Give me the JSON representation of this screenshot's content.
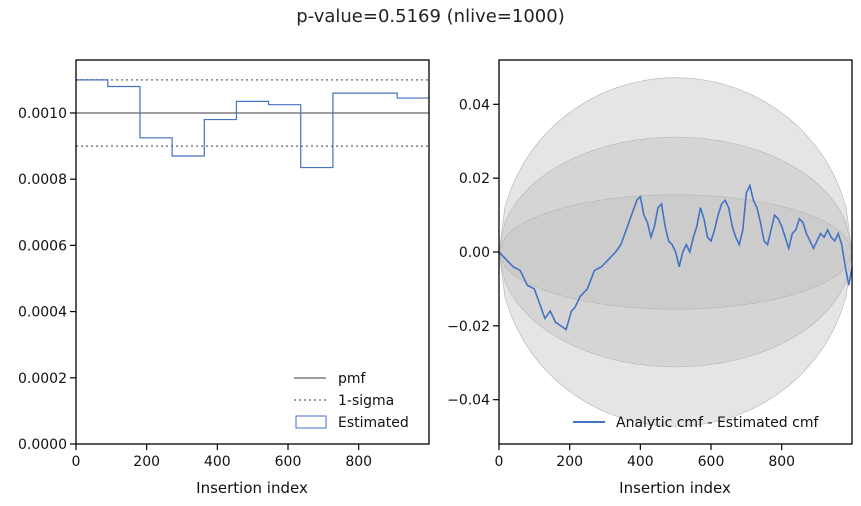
{
  "figure": {
    "title": "p-value=0.5169 (nlive=1000)"
  },
  "chart_data": [
    {
      "type": "line",
      "xlabel": "Insertion index",
      "ylabel": "",
      "xlim": [
        0,
        999
      ],
      "ylim": [
        0,
        0.00116
      ],
      "x_ticks": [
        0,
        200,
        400,
        600,
        800
      ],
      "x_tick_labels": [
        "0",
        "200",
        "400",
        "600",
        "800"
      ],
      "y_ticks": [
        0,
        0.0002,
        0.0004,
        0.0006,
        0.0008,
        0.001
      ],
      "y_tick_labels": [
        "0.0000",
        "0.0002",
        "0.0004",
        "0.0006",
        "0.0008",
        "0.0010"
      ],
      "grid": false,
      "legend_position": "lower-right",
      "colors": {
        "pmf": "#7f7f7f",
        "sigma": "#7f7f7f",
        "estimated": "#4472c4"
      },
      "series": [
        {
          "name": "pmf",
          "style": "solid",
          "x": [
            0,
            999
          ],
          "values": [
            0.001,
            0.001
          ]
        },
        {
          "name": "1-sigma",
          "style": "dotted",
          "x": [
            0,
            999
          ],
          "values": [
            0.0011,
            0.0011
          ]
        },
        {
          "name": "1-sigma",
          "style": "dotted",
          "x": [
            0,
            999
          ],
          "values": [
            0.0009,
            0.0009
          ]
        },
        {
          "name": "Estimated",
          "style": "step",
          "bin_edges": [
            0,
            90,
            181,
            272,
            363,
            454,
            545,
            636,
            727,
            818,
            909,
            999
          ],
          "values": [
            0.0011,
            0.00108,
            0.000925,
            0.00087,
            0.00098,
            0.001035,
            0.001025,
            0.000835,
            0.00106,
            0.00106,
            0.001045
          ]
        }
      ],
      "legend": [
        "pmf",
        "1-sigma",
        "Estimated"
      ]
    },
    {
      "type": "line",
      "xlabel": "Insertion index",
      "ylabel": "",
      "xlim": [
        0,
        999
      ],
      "ylim": [
        -0.052,
        0.052
      ],
      "x_ticks": [
        0,
        200,
        400,
        600,
        800
      ],
      "x_tick_labels": [
        "0",
        "200",
        "400",
        "600",
        "800"
      ],
      "y_ticks": [
        -0.04,
        -0.02,
        0.0,
        0.02,
        0.04
      ],
      "y_tick_labels": [
        "−0.04",
        "−0.02",
        "0.00",
        "0.02",
        "0.04"
      ],
      "grid": false,
      "legend_position": "lower-right",
      "colors": {
        "line": "#4472c4",
        "band": "#bdbdbd"
      },
      "bands_peak_halfwidth": [
        0.0472,
        0.0311,
        0.0155
      ],
      "series": [
        {
          "name": "Analytic cmf - Estimated cmf",
          "x": [
            0,
            20,
            40,
            60,
            80,
            100,
            115,
            130,
            145,
            160,
            175,
            190,
            205,
            215,
            230,
            250,
            270,
            290,
            310,
            330,
            345,
            360,
            375,
            390,
            400,
            410,
            420,
            430,
            440,
            450,
            460,
            470,
            480,
            490,
            500,
            510,
            520,
            530,
            540,
            550,
            560,
            570,
            580,
            590,
            600,
            610,
            620,
            630,
            640,
            650,
            660,
            670,
            680,
            690,
            700,
            710,
            720,
            730,
            740,
            750,
            760,
            770,
            780,
            790,
            800,
            810,
            820,
            830,
            840,
            850,
            860,
            870,
            880,
            890,
            900,
            910,
            920,
            930,
            940,
            950,
            960,
            970,
            980,
            990,
            999
          ],
          "values": [
            0.0,
            -0.002,
            -0.004,
            -0.005,
            -0.009,
            -0.01,
            -0.014,
            -0.018,
            -0.016,
            -0.019,
            -0.02,
            -0.021,
            -0.016,
            -0.015,
            -0.012,
            -0.01,
            -0.005,
            -0.004,
            -0.002,
            0.0,
            0.002,
            0.006,
            0.01,
            0.014,
            0.015,
            0.01,
            0.008,
            0.004,
            0.007,
            0.012,
            0.013,
            0.007,
            0.003,
            0.002,
            0.0,
            -0.004,
            0.0,
            0.002,
            0.0,
            0.004,
            0.007,
            0.012,
            0.009,
            0.004,
            0.003,
            0.006,
            0.01,
            0.013,
            0.014,
            0.012,
            0.007,
            0.004,
            0.002,
            0.006,
            0.016,
            0.018,
            0.014,
            0.012,
            0.008,
            0.003,
            0.002,
            0.006,
            0.01,
            0.009,
            0.007,
            0.004,
            0.001,
            0.005,
            0.006,
            0.009,
            0.008,
            0.005,
            0.003,
            0.001,
            0.003,
            0.005,
            0.004,
            0.006,
            0.004,
            0.003,
            0.005,
            0.002,
            -0.004,
            -0.009,
            -0.004
          ]
        }
      ],
      "legend": [
        "Analytic cmf - Estimated cmf"
      ]
    }
  ]
}
